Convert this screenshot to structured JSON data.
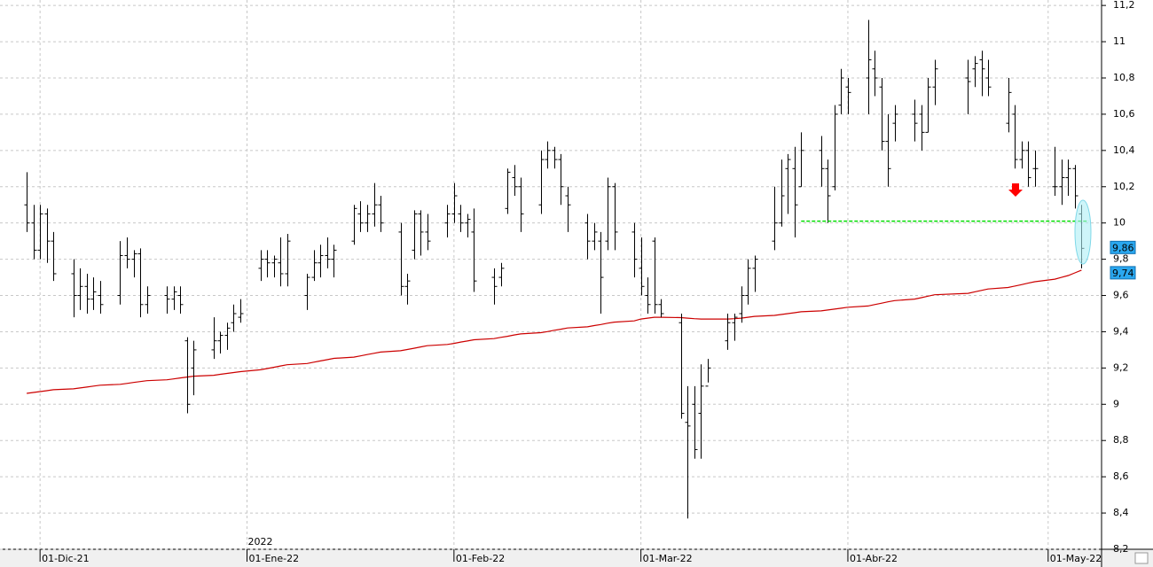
{
  "chart_data": {
    "type": "ohlc",
    "x": [
      "2021-11-29",
      "2021-11-30",
      "2021-12-01",
      "2021-12-02",
      "2021-12-03",
      "2021-12-06",
      "2021-12-07",
      "2021-12-08",
      "2021-12-09",
      "2021-12-10",
      "2021-12-13",
      "2021-12-14",
      "2021-12-15",
      "2021-12-16",
      "2021-12-17",
      "2021-12-20",
      "2021-12-21",
      "2021-12-22",
      "2021-12-23",
      "2021-12-24",
      "2021-12-27",
      "2021-12-28",
      "2021-12-29",
      "2021-12-30",
      "2021-12-31",
      "2022-01-03",
      "2022-01-04",
      "2022-01-05",
      "2022-01-06",
      "2022-01-07",
      "2022-01-10",
      "2022-01-11",
      "2022-01-12",
      "2022-01-13",
      "2022-01-14",
      "2022-01-17",
      "2022-01-18",
      "2022-01-19",
      "2022-01-20",
      "2022-01-21",
      "2022-01-24",
      "2022-01-25",
      "2022-01-26",
      "2022-01-27",
      "2022-01-28",
      "2022-01-31",
      "2022-02-01",
      "2022-02-02",
      "2022-02-03",
      "2022-02-04",
      "2022-02-07",
      "2022-02-08",
      "2022-02-09",
      "2022-02-10",
      "2022-02-11",
      "2022-02-14",
      "2022-02-15",
      "2022-02-16",
      "2022-02-17",
      "2022-02-18",
      "2022-02-21",
      "2022-02-22",
      "2022-02-23",
      "2022-02-24",
      "2022-02-25",
      "2022-02-28",
      "2022-03-01",
      "2022-03-02",
      "2022-03-03",
      "2022-03-04",
      "2022-03-07",
      "2022-03-08",
      "2022-03-09",
      "2022-03-10",
      "2022-03-11",
      "2022-03-14",
      "2022-03-15",
      "2022-03-16",
      "2022-03-17",
      "2022-03-18",
      "2022-03-21",
      "2022-03-22",
      "2022-03-23",
      "2022-03-24",
      "2022-03-25",
      "2022-03-28",
      "2022-03-29",
      "2022-03-30",
      "2022-03-31",
      "2022-04-01",
      "2022-04-04",
      "2022-04-05",
      "2022-04-06",
      "2022-04-07",
      "2022-04-08",
      "2022-04-11",
      "2022-04-12",
      "2022-04-13",
      "2022-04-14",
      "2022-04-19",
      "2022-04-20",
      "2022-04-21",
      "2022-04-22",
      "2022-04-25",
      "2022-04-26",
      "2022-04-27",
      "2022-04-28",
      "2022-04-29",
      "2022-05-02",
      "2022-05-03",
      "2022-05-04",
      "2022-05-05",
      "2022-05-06"
    ],
    "open": [
      10.1,
      10.0,
      9.85,
      10.05,
      9.9,
      9.72,
      9.6,
      9.65,
      9.58,
      9.6,
      9.6,
      9.82,
      9.8,
      9.83,
      9.55,
      9.6,
      9.58,
      9.6,
      9.35,
      9.2,
      9.3,
      9.35,
      9.38,
      9.45,
      9.48,
      9.75,
      9.8,
      9.78,
      9.78,
      9.72,
      9.6,
      9.7,
      9.78,
      9.82,
      9.8,
      9.9,
      10.05,
      10.0,
      10.05,
      10.1,
      9.95,
      9.65,
      9.85,
      10.05,
      9.95,
      10.0,
      10.05,
      10.05,
      10.0,
      9.95,
      9.7,
      9.7,
      10.08,
      10.25,
      10.2,
      10.1,
      10.35,
      10.4,
      10.35,
      10.15,
      10.0,
      9.9,
      9.9,
      9.9,
      10.2,
      9.95,
      9.75,
      9.6,
      9.9,
      9.55,
      9.45,
      8.9,
      9.0,
      8.95,
      9.1,
      9.35,
      9.45,
      9.5,
      9.6,
      9.75,
      9.9,
      10.0,
      10.3,
      10.3,
      10.2,
      10.4,
      10.3,
      10.2,
      10.65,
      10.75,
      10.8,
      10.85,
      10.75,
      10.45,
      10.55,
      10.6,
      10.6,
      10.5,
      10.75,
      10.8,
      10.85,
      10.9,
      10.8,
      10.55,
      10.6,
      10.35,
      10.4,
      10.3,
      10.2,
      10.2,
      10.25,
      10.3,
      10.05
    ],
    "high": [
      10.28,
      10.1,
      10.1,
      10.08,
      9.95,
      9.8,
      9.75,
      9.72,
      9.7,
      9.68,
      9.9,
      9.92,
      9.85,
      9.86,
      9.65,
      9.65,
      9.65,
      9.65,
      9.37,
      9.35,
      9.48,
      9.4,
      9.45,
      9.55,
      9.58,
      9.85,
      9.85,
      9.82,
      9.92,
      9.94,
      9.72,
      9.85,
      9.88,
      9.92,
      9.88,
      10.1,
      10.12,
      10.1,
      10.22,
      10.15,
      10.0,
      9.72,
      10.07,
      10.07,
      10.05,
      10.1,
      10.22,
      10.1,
      10.05,
      10.08,
      9.75,
      9.78,
      10.3,
      10.32,
      10.25,
      10.4,
      10.45,
      10.42,
      10.38,
      10.2,
      10.05,
      10.0,
      9.95,
      10.25,
      10.22,
      10.0,
      9.92,
      9.7,
      9.92,
      9.58,
      9.5,
      9.1,
      9.1,
      9.22,
      9.25,
      9.5,
      9.5,
      9.65,
      9.8,
      9.82,
      10.2,
      10.35,
      10.38,
      10.42,
      10.5,
      10.48,
      10.35,
      10.65,
      10.85,
      10.8,
      11.12,
      10.95,
      10.8,
      10.6,
      10.65,
      10.68,
      10.65,
      10.8,
      10.9,
      10.9,
      10.92,
      10.95,
      10.9,
      10.8,
      10.65,
      10.45,
      10.45,
      10.4,
      10.42,
      10.35,
      10.35,
      10.32,
      10.1
    ],
    "low": [
      9.95,
      9.8,
      9.8,
      9.78,
      9.68,
      9.48,
      9.52,
      9.5,
      9.52,
      9.5,
      9.55,
      9.75,
      9.7,
      9.48,
      9.5,
      9.5,
      9.52,
      9.5,
      8.95,
      9.05,
      9.25,
      9.28,
      9.3,
      9.4,
      9.45,
      9.68,
      9.7,
      9.7,
      9.65,
      9.65,
      9.52,
      9.68,
      9.7,
      9.75,
      9.7,
      9.88,
      9.95,
      9.95,
      9.98,
      9.95,
      9.6,
      9.55,
      9.8,
      9.82,
      9.85,
      9.92,
      10.0,
      9.95,
      9.92,
      9.62,
      9.55,
      9.65,
      10.05,
      10.15,
      9.95,
      10.05,
      10.3,
      10.3,
      10.1,
      9.95,
      9.8,
      9.85,
      9.5,
      9.85,
      9.85,
      9.7,
      9.6,
      9.5,
      9.5,
      9.48,
      8.92,
      8.37,
      8.7,
      8.7,
      9.12,
      9.3,
      9.35,
      9.45,
      9.55,
      9.62,
      9.85,
      9.98,
      10.05,
      9.92,
      10.2,
      10.2,
      10.0,
      10.18,
      10.6,
      10.6,
      10.6,
      10.7,
      10.4,
      10.2,
      10.45,
      10.45,
      10.4,
      10.5,
      10.65,
      10.6,
      10.75,
      10.7,
      10.7,
      10.5,
      10.3,
      10.3,
      10.2,
      10.2,
      10.15,
      10.1,
      10.15,
      10.08,
      9.75
    ],
    "close": [
      10.0,
      9.85,
      10.05,
      9.9,
      9.72,
      9.6,
      9.65,
      9.58,
      9.62,
      9.55,
      9.82,
      9.8,
      9.83,
      9.55,
      9.6,
      9.58,
      9.62,
      9.55,
      9.0,
      9.3,
      9.35,
      9.38,
      9.42,
      9.5,
      9.5,
      9.8,
      9.78,
      9.8,
      9.72,
      9.9,
      9.7,
      9.78,
      9.82,
      9.8,
      9.85,
      10.08,
      10.0,
      10.05,
      10.1,
      10.0,
      9.65,
      9.68,
      10.05,
      9.95,
      9.9,
      10.05,
      10.15,
      10.0,
      10.02,
      9.68,
      9.65,
      9.75,
      10.28,
      10.2,
      10.05,
      10.35,
      10.4,
      10.35,
      10.2,
      10.1,
      9.9,
      9.95,
      9.7,
      10.2,
      9.95,
      9.8,
      9.65,
      9.55,
      9.55,
      9.5,
      8.95,
      8.88,
      8.75,
      9.1,
      9.2,
      9.45,
      9.48,
      9.6,
      9.75,
      9.8,
      10.0,
      10.15,
      10.35,
      10.1,
      10.4,
      10.3,
      10.15,
      10.6,
      10.8,
      10.72,
      10.9,
      10.8,
      10.45,
      10.3,
      10.6,
      10.55,
      10.5,
      10.75,
      10.85,
      10.78,
      10.88,
      10.85,
      10.75,
      10.72,
      10.35,
      10.4,
      10.25,
      10.3,
      10.2,
      10.25,
      10.3,
      10.15,
      9.86
    ],
    "bar_color": "#000000",
    "moving_average": {
      "color": "#cc0000",
      "values": [
        9.06,
        9.065,
        9.07,
        9.075,
        9.08,
        9.085,
        9.09,
        9.095,
        9.1,
        9.105,
        9.11,
        9.115,
        9.12,
        9.125,
        9.13,
        9.135,
        9.14,
        9.145,
        9.15,
        9.155,
        9.16,
        9.165,
        9.17,
        9.175,
        9.18,
        9.19,
        9.197,
        9.204,
        9.211,
        9.218,
        9.225,
        9.232,
        9.239,
        9.246,
        9.253,
        9.26,
        9.267,
        9.274,
        9.281,
        9.288,
        9.295,
        9.302,
        9.309,
        9.316,
        9.323,
        9.33,
        9.336,
        9.343,
        9.349,
        9.356,
        9.362,
        9.369,
        9.375,
        9.382,
        9.388,
        9.395,
        9.401,
        9.408,
        9.414,
        9.421,
        9.427,
        9.434,
        9.44,
        9.447,
        9.453,
        9.46,
        9.47,
        9.475,
        9.48,
        9.48,
        9.478,
        9.475,
        9.472,
        9.47,
        9.47,
        9.47,
        9.472,
        9.475,
        9.48,
        9.485,
        9.49,
        9.495,
        9.5,
        9.505,
        9.51,
        9.515,
        9.52,
        9.525,
        9.53,
        9.535,
        9.542,
        9.55,
        9.557,
        9.565,
        9.572,
        9.58,
        9.588,
        9.596,
        9.604,
        9.612,
        9.62,
        9.628,
        9.636,
        9.644,
        9.652,
        9.66,
        9.668,
        9.676,
        9.69,
        9.7,
        9.71,
        9.725,
        9.74
      ]
    },
    "support_line": {
      "value": 10.01,
      "from": "2022-03-25",
      "to": "2022-05-06",
      "color": "#00dd00"
    },
    "price_tags": [
      {
        "value": 9.86,
        "label": "9,86"
      },
      {
        "value": 9.74,
        "label": "9,74"
      }
    ],
    "year_label": "2022",
    "xlim": [
      "2021-11-25",
      "2022-05-09"
    ],
    "xticks": [
      {
        "value": "2021-12-01",
        "label": "01-Dic-21"
      },
      {
        "value": "2022-01-01",
        "label": "01-Ene-22"
      },
      {
        "value": "2022-02-01",
        "label": "01-Feb-22"
      },
      {
        "value": "2022-03-01",
        "label": "01-Mar-22"
      },
      {
        "value": "2022-04-01",
        "label": "01-Abr-22"
      },
      {
        "value": "2022-05-01",
        "label": "01-May-22"
      }
    ],
    "ylim": [
      8.2,
      11.23
    ],
    "yticks": [
      {
        "value": 8.2,
        "label": "8,2"
      },
      {
        "value": 8.4,
        "label": "8,4"
      },
      {
        "value": 8.6,
        "label": "8,6"
      },
      {
        "value": 8.8,
        "label": "8,8"
      },
      9,
      {
        "value": 9.2,
        "label": "9,2"
      },
      {
        "value": 9.4,
        "label": "9,4"
      },
      {
        "value": 9.6,
        "label": "9,6"
      },
      {
        "value": 9.8,
        "label": "9,8"
      },
      10,
      {
        "value": 10.2,
        "label": "10,2"
      },
      {
        "value": 10.4,
        "label": "10,4"
      },
      {
        "value": 10.6,
        "label": "10,6"
      },
      {
        "value": 10.8,
        "label": "10,8"
      },
      11,
      {
        "value": 11.2,
        "label": "11,2"
      }
    ],
    "grid": true
  }
}
